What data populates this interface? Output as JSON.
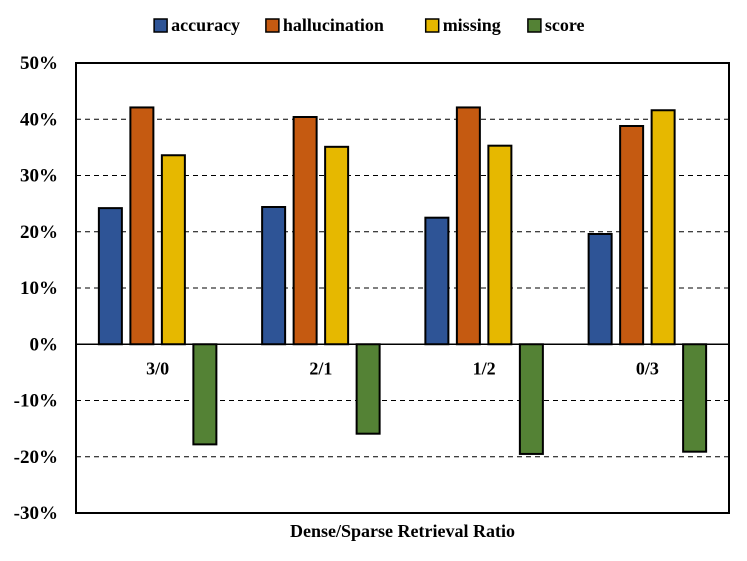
{
  "chart_data": {
    "type": "bar",
    "title": "",
    "xlabel": "Dense/Sparse Retrieval Ratio",
    "ylabel": "",
    "ylim": [
      -30,
      50
    ],
    "ytick_step": 10,
    "ytick_suffix": "%",
    "grid": true,
    "legend_position": "top",
    "categories": [
      "3/0",
      "2/1",
      "1/2",
      "0/3"
    ],
    "series": [
      {
        "name": "accuracy",
        "color": "#2E5496",
        "values": [
          24.2,
          24.4,
          22.5,
          19.6
        ]
      },
      {
        "name": "hallucination",
        "color": "#C55A11",
        "values": [
          42.1,
          40.4,
          42.1,
          38.8
        ]
      },
      {
        "name": "missing",
        "color": "#E6B800",
        "values": [
          33.6,
          35.1,
          35.3,
          41.6
        ]
      },
      {
        "name": "score",
        "color": "#548235",
        "values": [
          -17.8,
          -15.9,
          -19.5,
          -19.1
        ]
      }
    ]
  }
}
